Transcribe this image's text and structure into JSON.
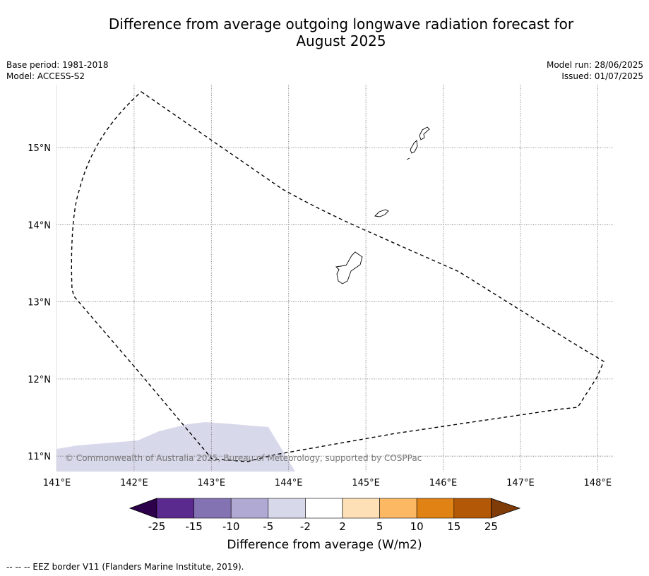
{
  "title_line1": "Difference from average outgoing longwave radiation forecast for",
  "title_line2": "August 2025",
  "base_period": "Base period: 1981-2018",
  "model": "Model: ACCESS-S2",
  "model_run": "Model run: 28/06/2025",
  "issued": "Issued: 01/07/2025",
  "copyright": "© Commonwealth of Australia 2025, Bureau of Meteorology, supported by COSPPac",
  "colorbar": {
    "label": "Difference from average (W/m2)",
    "ticks": [
      "-25",
      "-15",
      "-10",
      "-5",
      "-2",
      "2",
      "5",
      "10",
      "15",
      "25"
    ],
    "colors": [
      "#5a2a8e",
      "#8473b3",
      "#b0a9d4",
      "#d8d8eb",
      "#ffffff",
      "#fde0b5",
      "#fdb863",
      "#e08214",
      "#b35806"
    ],
    "under_color": "#2d004b",
    "over_color": "#7f3b08"
  },
  "footer": "--  --  -- EEZ border V11 (Flanders Marine Institute, 2019).",
  "map_data": {
    "lon_ticks": [
      "141°E",
      "142°E",
      "143°E",
      "144°E",
      "145°E",
      "146°E",
      "147°E",
      "148°E"
    ],
    "lat_ticks": [
      "15°N",
      "14°N",
      "13°N",
      "12°N",
      "11°N"
    ],
    "lon_range": [
      141,
      148.2
    ],
    "lat_range": [
      10.8,
      15.8
    ],
    "grid": "dotted",
    "anomaly_region": {
      "category": "-5 to -2",
      "color": "#d8d8eb"
    }
  }
}
